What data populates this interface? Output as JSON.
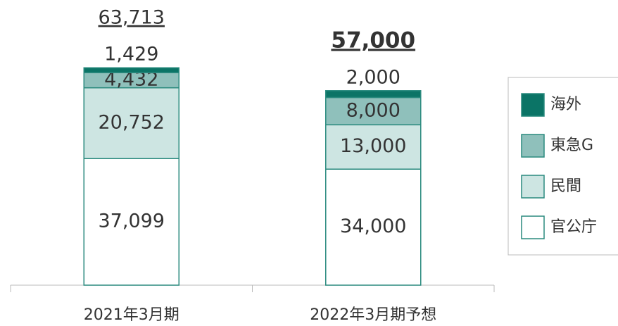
{
  "chart_data": {
    "type": "stacked-bar",
    "categories": [
      "2021年3月期",
      "2022年3月期予想"
    ],
    "series": [
      {
        "name": "官公庁",
        "color": "#ffffff",
        "values": [
          37099,
          34000
        ],
        "value_labels": [
          "37,099",
          "34,000"
        ]
      },
      {
        "name": "民間",
        "color": "#cde5e2",
        "values": [
          20752,
          13000
        ],
        "value_labels": [
          "20,752",
          "13,000"
        ]
      },
      {
        "name": "東急G",
        "color": "#8fc0bb",
        "values": [
          4432,
          8000
        ],
        "value_labels": [
          "4,432",
          "8,000"
        ]
      },
      {
        "name": "海外",
        "color": "#0b7466",
        "values": [
          1429,
          2000
        ],
        "value_labels": [
          "1,429",
          "2,000"
        ]
      }
    ],
    "totals": [
      63713,
      57000
    ],
    "total_labels": [
      "63,713",
      "57,000"
    ],
    "total_bold": [
      false,
      true
    ],
    "ylim": [
      0,
      65000
    ],
    "border_color": "#2a8a7e"
  }
}
